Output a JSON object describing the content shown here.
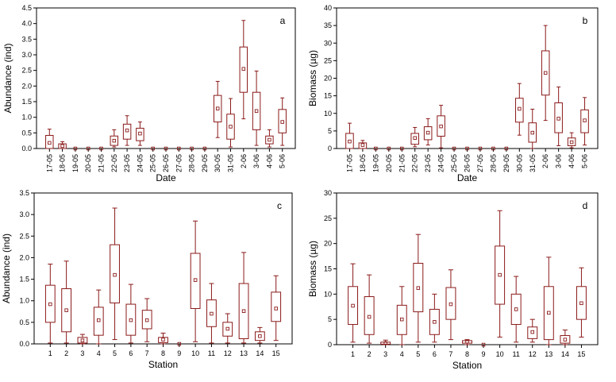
{
  "style": {
    "box_color": "#8b1a1a",
    "axis_color": "#000000",
    "background": "#ffffff"
  },
  "chart_data": [
    {
      "type": "box",
      "panel": "a",
      "xlabel": "Date",
      "ylabel": "Abundance (ind)",
      "ylim": [
        0,
        4.5
      ],
      "yticks": [
        "0.0",
        "0.5",
        "1.0",
        "1.5",
        "2.0",
        "2.5",
        "3.0",
        "3.5",
        "4.0",
        "4.5"
      ],
      "categories": [
        "17-05",
        "18-05",
        "19-05",
        "20-05",
        "21-05",
        "22-05",
        "23-05",
        "24-05",
        "25-05",
        "26-05",
        "27-05",
        "28-05",
        "29-05",
        "30-05",
        "31-05",
        "2-06",
        "3-06",
        "4-06",
        "5-06"
      ],
      "boxes": [
        {
          "min": 0,
          "q1": 0,
          "median": 0.18,
          "q3": 0.42,
          "max": 0.62
        },
        {
          "min": 0,
          "q1": 0,
          "median": 0.08,
          "q3": 0.15,
          "max": 0.22
        },
        {
          "min": 0,
          "q1": 0,
          "median": 0,
          "q3": 0,
          "max": 0
        },
        {
          "min": 0,
          "q1": 0,
          "median": 0,
          "q3": 0,
          "max": 0
        },
        {
          "min": 0,
          "q1": 0,
          "median": 0,
          "q3": 0,
          "max": 0
        },
        {
          "min": 0.05,
          "q1": 0.1,
          "median": 0.25,
          "q3": 0.4,
          "max": 0.6
        },
        {
          "min": 0.1,
          "q1": 0.3,
          "median": 0.58,
          "q3": 0.78,
          "max": 1.05
        },
        {
          "min": 0.1,
          "q1": 0.25,
          "median": 0.48,
          "q3": 0.65,
          "max": 0.85
        },
        {
          "min": 0,
          "q1": 0,
          "median": 0,
          "q3": 0,
          "max": 0
        },
        {
          "min": 0,
          "q1": 0,
          "median": 0,
          "q3": 0,
          "max": 0
        },
        {
          "min": 0,
          "q1": 0,
          "median": 0,
          "q3": 0,
          "max": 0
        },
        {
          "min": 0,
          "q1": 0,
          "median": 0,
          "q3": 0,
          "max": 0
        },
        {
          "min": 0,
          "q1": 0,
          "median": 0,
          "q3": 0,
          "max": 0
        },
        {
          "min": 0.35,
          "q1": 0.85,
          "median": 1.28,
          "q3": 1.7,
          "max": 2.15
        },
        {
          "min": 0.05,
          "q1": 0.3,
          "median": 0.7,
          "q3": 1.1,
          "max": 1.6
        },
        {
          "min": 0.95,
          "q1": 1.8,
          "median": 2.55,
          "q3": 3.25,
          "max": 4.1
        },
        {
          "min": 0.1,
          "q1": 0.6,
          "median": 1.2,
          "q3": 1.8,
          "max": 2.48
        },
        {
          "min": 0.05,
          "q1": 0.15,
          "median": 0.28,
          "q3": 0.4,
          "max": 0.6
        },
        {
          "min": 0.1,
          "q1": 0.5,
          "median": 0.85,
          "q3": 1.25,
          "max": 1.62
        }
      ]
    },
    {
      "type": "box",
      "panel": "b",
      "xlabel": "Date",
      "ylabel": "Biomass (µg)",
      "ylim": [
        0,
        40
      ],
      "yticks": [
        "0",
        "5",
        "10",
        "15",
        "20",
        "25",
        "30",
        "35",
        "40"
      ],
      "categories": [
        "17-05",
        "18-05",
        "19-05",
        "20-05",
        "21-05",
        "22-05",
        "23-05",
        "24-05",
        "25-05",
        "26-05",
        "27-05",
        "28-05",
        "29-05",
        "30-05",
        "31-05",
        "2-06",
        "3-06",
        "4-06",
        "5-06"
      ],
      "boxes": [
        {
          "min": 0,
          "q1": 0,
          "median": 2,
          "q3": 4.3,
          "max": 7.2
        },
        {
          "min": 0,
          "q1": 0,
          "median": 1,
          "q3": 1.6,
          "max": 2.3
        },
        {
          "min": 0,
          "q1": 0,
          "median": 0,
          "q3": 0,
          "max": 0
        },
        {
          "min": 0,
          "q1": 0,
          "median": 0,
          "q3": 0,
          "max": 0
        },
        {
          "min": 0,
          "q1": 0,
          "median": 0,
          "q3": 0,
          "max": 0
        },
        {
          "min": 0.5,
          "q1": 1.2,
          "median": 3,
          "q3": 4.3,
          "max": 6
        },
        {
          "min": 1,
          "q1": 2.5,
          "median": 4.5,
          "q3": 6.2,
          "max": 8.5
        },
        {
          "min": 0.2,
          "q1": 3.5,
          "median": 6.3,
          "q3": 9.3,
          "max": 12.3
        },
        {
          "min": 0,
          "q1": 0,
          "median": 0,
          "q3": 0,
          "max": 0
        },
        {
          "min": 0,
          "q1": 0,
          "median": 0,
          "q3": 0,
          "max": 0
        },
        {
          "min": 0,
          "q1": 0,
          "median": 0,
          "q3": 0,
          "max": 0
        },
        {
          "min": 0,
          "q1": 0,
          "median": 0,
          "q3": 0,
          "max": 0
        },
        {
          "min": 0,
          "q1": 0,
          "median": 0,
          "q3": 0,
          "max": 0
        },
        {
          "min": 3.8,
          "q1": 7.5,
          "median": 11.3,
          "q3": 14.3,
          "max": 18.5
        },
        {
          "min": 0,
          "q1": 1.8,
          "median": 4.5,
          "q3": 7.3,
          "max": 11.2
        },
        {
          "min": 8,
          "q1": 15.2,
          "median": 21.5,
          "q3": 27.8,
          "max": 35
        },
        {
          "min": 0.8,
          "q1": 4.5,
          "median": 8.5,
          "q3": 13,
          "max": 17.5
        },
        {
          "min": 0.2,
          "q1": 0.8,
          "median": 1.8,
          "q3": 3,
          "max": 4.5
        },
        {
          "min": 1,
          "q1": 4.5,
          "median": 8,
          "q3": 11,
          "max": 14.5
        }
      ]
    },
    {
      "type": "box",
      "panel": "c",
      "xlabel": "Station",
      "ylabel": "Abundance (ind)",
      "ylim": [
        0,
        3.5
      ],
      "yticks": [
        "0.0",
        "0.5",
        "1.0",
        "1.5",
        "2.0",
        "2.5",
        "3.0",
        "3.5"
      ],
      "categories": [
        "1",
        "2",
        "3",
        "4",
        "5",
        "6",
        "7",
        "8",
        "9",
        "10",
        "11",
        "12",
        "13",
        "14",
        "15"
      ],
      "boxes": [
        {
          "min": 0.02,
          "q1": 0.5,
          "median": 0.92,
          "q3": 1.36,
          "max": 1.85
        },
        {
          "min": 0.02,
          "q1": 0.28,
          "median": 0.78,
          "q3": 1.28,
          "max": 1.92
        },
        {
          "min": 0,
          "q1": 0.02,
          "median": 0.08,
          "q3": 0.15,
          "max": 0.22
        },
        {
          "min": 0,
          "q1": 0.2,
          "median": 0.55,
          "q3": 0.85,
          "max": 1.25
        },
        {
          "min": 0.1,
          "q1": 0.95,
          "median": 1.6,
          "q3": 2.3,
          "max": 3.15
        },
        {
          "min": 0.02,
          "q1": 0.2,
          "median": 0.55,
          "q3": 0.92,
          "max": 1.38
        },
        {
          "min": 0.05,
          "q1": 0.35,
          "median": 0.55,
          "q3": 0.78,
          "max": 1.05
        },
        {
          "min": 0,
          "q1": 0.03,
          "median": 0.1,
          "q3": 0.15,
          "max": 0.25
        },
        {
          "min": 0,
          "q1": 0,
          "median": 0,
          "q3": 0,
          "max": 0
        },
        {
          "min": 0.05,
          "q1": 0.82,
          "median": 1.48,
          "q3": 2.1,
          "max": 2.85
        },
        {
          "min": 0.02,
          "q1": 0.4,
          "median": 0.7,
          "q3": 1.02,
          "max": 1.4
        },
        {
          "min": 0.02,
          "q1": 0.18,
          "median": 0.35,
          "q3": 0.5,
          "max": 0.7
        },
        {
          "min": 0.02,
          "q1": 0.12,
          "median": 0.76,
          "q3": 1.4,
          "max": 2.12
        },
        {
          "min": 0.02,
          "q1": 0.08,
          "median": 0.18,
          "q3": 0.28,
          "max": 0.38
        },
        {
          "min": 0.08,
          "q1": 0.52,
          "median": 0.82,
          "q3": 1.2,
          "max": 1.58
        }
      ]
    },
    {
      "type": "box",
      "panel": "d",
      "xlabel": "Station",
      "ylabel": "Biomass (µg)",
      "ylim": [
        0,
        30
      ],
      "yticks": [
        "0",
        "5",
        "10",
        "15",
        "20",
        "25",
        "30"
      ],
      "categories": [
        "1",
        "2",
        "3",
        "4",
        "5",
        "6",
        "7",
        "8",
        "9",
        "10",
        "11",
        "12",
        "13",
        "14",
        "15"
      ],
      "boxes": [
        {
          "min": 0.5,
          "q1": 4,
          "median": 7.7,
          "q3": 11.5,
          "max": 16
        },
        {
          "min": 0.3,
          "q1": 2,
          "median": 5.5,
          "q3": 9.5,
          "max": 13.8
        },
        {
          "min": 0,
          "q1": 0.1,
          "median": 0.3,
          "q3": 0.5,
          "max": 0.9
        },
        {
          "min": 0,
          "q1": 2,
          "median": 5,
          "q3": 7.8,
          "max": 11.5
        },
        {
          "min": 0.5,
          "q1": 6.5,
          "median": 11.2,
          "q3": 16.1,
          "max": 21.8
        },
        {
          "min": 0.5,
          "q1": 2,
          "median": 4.5,
          "q3": 7,
          "max": 10
        },
        {
          "min": 1,
          "q1": 5,
          "median": 8,
          "q3": 11.3,
          "max": 14.8
        },
        {
          "min": 0,
          "q1": 0.3,
          "median": 0.6,
          "q3": 0.8,
          "max": 1
        },
        {
          "min": 0,
          "q1": 0,
          "median": 0,
          "q3": 0,
          "max": 0
        },
        {
          "min": 1.5,
          "q1": 8,
          "median": 13.8,
          "q3": 19.5,
          "max": 26.5
        },
        {
          "min": 0.5,
          "q1": 4,
          "median": 7,
          "q3": 10,
          "max": 13.5
        },
        {
          "min": 0.5,
          "q1": 1.2,
          "median": 2.5,
          "q3": 3.5,
          "max": 5
        },
        {
          "min": 0,
          "q1": 1,
          "median": 6.3,
          "q3": 11.5,
          "max": 17.3
        },
        {
          "min": 0,
          "q1": 0.3,
          "median": 1,
          "q3": 1.8,
          "max": 2.9
        },
        {
          "min": 1.5,
          "q1": 5,
          "median": 8.2,
          "q3": 11.5,
          "max": 15.2
        }
      ]
    }
  ]
}
